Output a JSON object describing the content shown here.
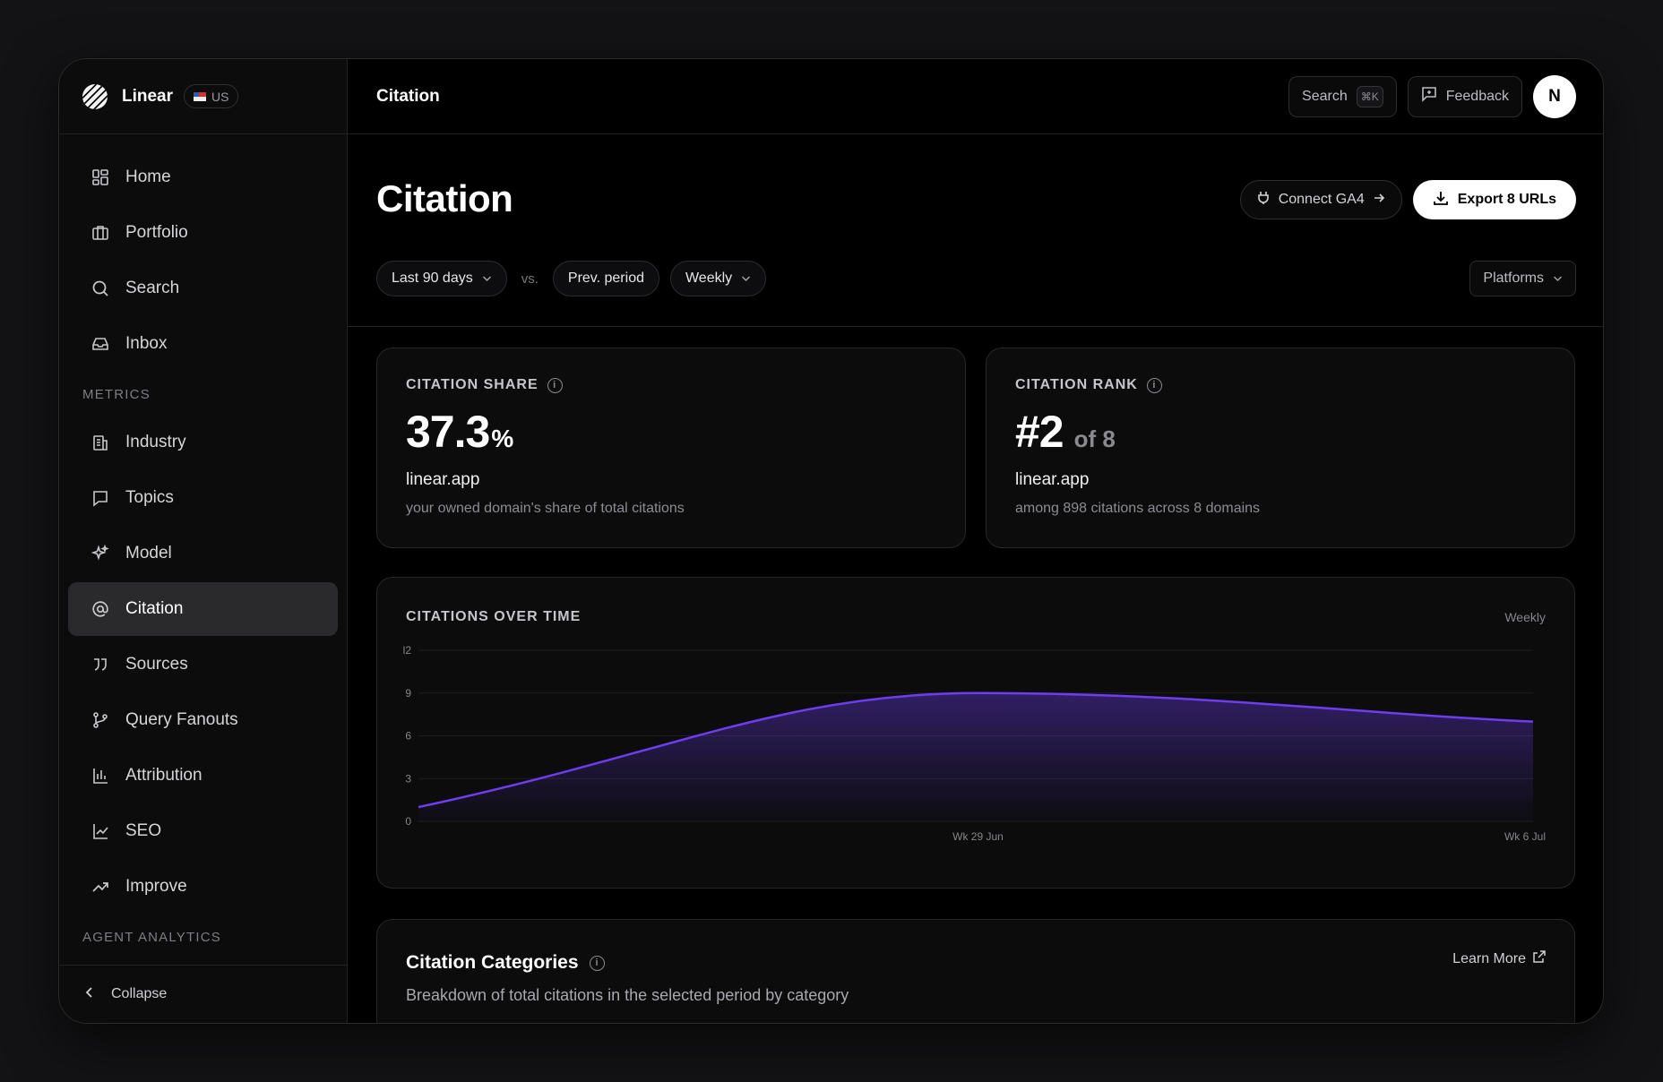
{
  "app": {
    "name": "Linear",
    "region": "US"
  },
  "sidebar": {
    "items": [
      {
        "label": "Home",
        "icon": "grid-icon"
      },
      {
        "label": "Portfolio",
        "icon": "briefcase-icon"
      },
      {
        "label": "Search",
        "icon": "search-icon"
      },
      {
        "label": "Inbox",
        "icon": "inbox-icon"
      }
    ],
    "metrics_section": "METRICS",
    "metrics_items": [
      {
        "label": "Industry",
        "icon": "building-icon"
      },
      {
        "label": "Topics",
        "icon": "chat-icon"
      },
      {
        "label": "Model",
        "icon": "sparkle-icon"
      },
      {
        "label": "Citation",
        "icon": "at-icon",
        "active": true
      },
      {
        "label": "Sources",
        "icon": "quote-icon"
      },
      {
        "label": "Query Fanouts",
        "icon": "branch-icon"
      },
      {
        "label": "Attribution",
        "icon": "bar-chart-icon"
      },
      {
        "label": "SEO",
        "icon": "line-chart-icon"
      },
      {
        "label": "Improve",
        "icon": "trend-up-icon"
      }
    ],
    "agent_section": "AGENT ANALYTICS",
    "collapse_label": "Collapse"
  },
  "topbar": {
    "title": "Citation",
    "search_label": "Search",
    "search_shortcut": "⌘K",
    "feedback_label": "Feedback",
    "avatar_initial": "N"
  },
  "page": {
    "title": "Citation",
    "connect_label": "Connect GA4",
    "export_label": "Export 8 URLs"
  },
  "filters": {
    "range": "Last 90 days",
    "vs": "vs.",
    "compare": "Prev. period",
    "interval": "Weekly",
    "platforms": "Platforms"
  },
  "share_card": {
    "label": "CITATION SHARE",
    "value": "37.3",
    "unit": "%",
    "domain": "linear.app",
    "desc": "your owned domain's share of total citations"
  },
  "rank_card": {
    "label": "CITATION RANK",
    "value": "#2",
    "suffix": "of 8",
    "domain": "linear.app",
    "desc": "among 898 citations across 8 domains"
  },
  "chart_data": {
    "type": "area",
    "title": "CITATIONS OVER TIME",
    "frequency": "Weekly",
    "xlabel": "",
    "ylabel": "",
    "ylim": [
      0,
      12
    ],
    "yticks": [
      0,
      3,
      6,
      9,
      12
    ],
    "ytick_labels": [
      "0",
      "3",
      "6",
      "9",
      "l2"
    ],
    "x_tick_labels": [
      "Wk 29 Jun",
      "Wk 6 Jul"
    ],
    "series": [
      {
        "values": [
          1,
          9,
          7
        ]
      }
    ],
    "grid": true,
    "color": "#6d3df0"
  },
  "categories_card": {
    "title": "Citation Categories",
    "desc": "Breakdown of total citations in the selected period by category",
    "learn_more": "Learn More"
  },
  "colors": {
    "accent": "#6d3df0",
    "background": "#000000"
  }
}
